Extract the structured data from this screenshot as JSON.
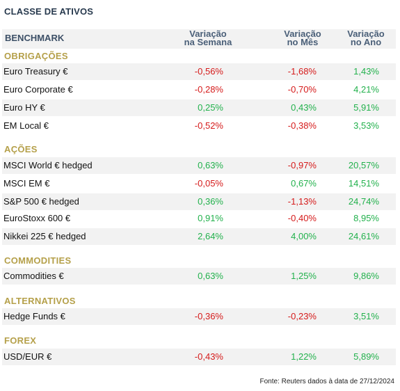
{
  "title": "CLASSE DE ATIVOS",
  "header": {
    "benchmark": "BENCHMARK",
    "week": "Variação\nna Semana",
    "month": "Variação\nno Mês",
    "year": "Variação\nno Ano"
  },
  "sections": [
    {
      "title": "OBRIGAÇÕES",
      "rows": [
        {
          "name": "Euro Treasury €",
          "week": "-0,56%",
          "month": "-1,68%",
          "year": "1,43%"
        },
        {
          "name": "Euro Corporate €",
          "week": "-0,28%",
          "month": "-0,70%",
          "year": "4,21%"
        },
        {
          "name": "Euro HY €",
          "week": "0,25%",
          "month": "0,43%",
          "year": "5,91%"
        },
        {
          "name": "EM Local €",
          "week": "-0,52%",
          "month": "-0,38%",
          "year": "3,53%"
        }
      ]
    },
    {
      "title": "AÇÕES",
      "rows": [
        {
          "name": "MSCI World € hedged",
          "week": "0,63%",
          "month": "-0,97%",
          "year": "20,57%"
        },
        {
          "name": "MSCI EM €",
          "week": "-0,05%",
          "month": "0,67%",
          "year": "14,51%"
        },
        {
          "name": "S&P 500 € hedged",
          "week": "0,36%",
          "month": "-1,13%",
          "year": "24,74%"
        },
        {
          "name": "EuroStoxx 600 €",
          "week": "0,91%",
          "month": "-0,40%",
          "year": "8,95%"
        },
        {
          "name": "Nikkei 225 € hedged",
          "week": "2,64%",
          "month": "4,00%",
          "year": "24,61%"
        }
      ]
    },
    {
      "title": "COMMODITIES",
      "rows": [
        {
          "name": "Commodities €",
          "week": "0,63%",
          "month": "1,25%",
          "year": "9,86%"
        }
      ]
    },
    {
      "title": "ALTERNATIVOS",
      "rows": [
        {
          "name": "Hedge Funds €",
          "week": "-0,36%",
          "month": "-0,23%",
          "year": "3,51%"
        }
      ]
    },
    {
      "title": "FOREX",
      "rows": [
        {
          "name": "USD/EUR €",
          "week": "-0,43%",
          "month": "1,22%",
          "year": "5,89%"
        }
      ]
    }
  ],
  "footer": "Fonte: Reuters dados à data de 27/12/2024",
  "colors": {
    "positive": "#22b14c",
    "negative": "#d51a1a",
    "section": "#b5a04a",
    "header": "#4a5f78",
    "shade": "#f2f2f2"
  }
}
